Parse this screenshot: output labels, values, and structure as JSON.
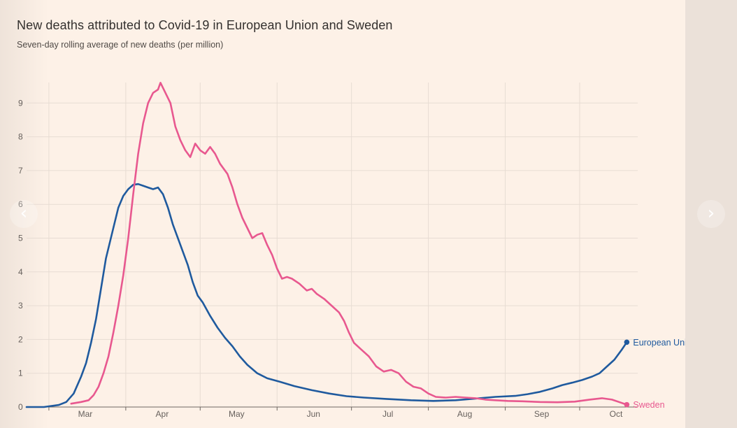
{
  "title": "New deaths attributed to Covid-19 in European Union and Sweden",
  "subtitle": "Seven-day rolling average of new deaths (per million)",
  "nav": {
    "prev_icon": "‹",
    "next_icon": "›"
  },
  "chart_data": {
    "type": "line",
    "title": "New deaths attributed to Covid-19 in European Union and Sweden",
    "subtitle": "Seven-day rolling average of new deaths (per million)",
    "xlabel": "",
    "ylabel": "",
    "x_ticks": [
      "Mar",
      "Apr",
      "May",
      "Jun",
      "Jul",
      "Aug",
      "Sep",
      "Oct"
    ],
    "y_ticks": [
      0,
      1,
      2,
      3,
      4,
      5,
      6,
      7,
      8,
      9
    ],
    "ylim": [
      0,
      9.7
    ],
    "xlim": [
      "2020-02-21",
      "2020-10-20"
    ],
    "grid": true,
    "legend": "end-of-line labels",
    "series": [
      {
        "name": "European Union",
        "color": "#1f5a9e",
        "points": [
          [
            "2020-02-21",
            0
          ],
          [
            "2020-02-28",
            0
          ],
          [
            "2020-03-01",
            0.02
          ],
          [
            "2020-03-05",
            0.06
          ],
          [
            "2020-03-08",
            0.15
          ],
          [
            "2020-03-11",
            0.4
          ],
          [
            "2020-03-14",
            0.9
          ],
          [
            "2020-03-16",
            1.3
          ],
          [
            "2020-03-18",
            1.9
          ],
          [
            "2020-03-20",
            2.6
          ],
          [
            "2020-03-22",
            3.5
          ],
          [
            "2020-03-24",
            4.4
          ],
          [
            "2020-03-27",
            5.3
          ],
          [
            "2020-03-29",
            5.9
          ],
          [
            "2020-03-31",
            6.25
          ],
          [
            "2020-04-02",
            6.45
          ],
          [
            "2020-04-04",
            6.58
          ],
          [
            "2020-04-06",
            6.6
          ],
          [
            "2020-04-08",
            6.55
          ],
          [
            "2020-04-10",
            6.5
          ],
          [
            "2020-04-12",
            6.45
          ],
          [
            "2020-04-14",
            6.5
          ],
          [
            "2020-04-16",
            6.3
          ],
          [
            "2020-04-18",
            5.9
          ],
          [
            "2020-04-20",
            5.4
          ],
          [
            "2020-04-22",
            5.0
          ],
          [
            "2020-04-24",
            4.6
          ],
          [
            "2020-04-26",
            4.2
          ],
          [
            "2020-04-28",
            3.7
          ],
          [
            "2020-04-30",
            3.3
          ],
          [
            "2020-05-02",
            3.1
          ],
          [
            "2020-05-05",
            2.7
          ],
          [
            "2020-05-08",
            2.35
          ],
          [
            "2020-05-11",
            2.05
          ],
          [
            "2020-05-14",
            1.8
          ],
          [
            "2020-05-17",
            1.5
          ],
          [
            "2020-05-20",
            1.25
          ],
          [
            "2020-05-24",
            1.0
          ],
          [
            "2020-05-28",
            0.85
          ],
          [
            "2020-06-02",
            0.75
          ],
          [
            "2020-06-08",
            0.62
          ],
          [
            "2020-06-15",
            0.5
          ],
          [
            "2020-06-22",
            0.4
          ],
          [
            "2020-06-29",
            0.32
          ],
          [
            "2020-07-06",
            0.28
          ],
          [
            "2020-07-15",
            0.24
          ],
          [
            "2020-07-25",
            0.2
          ],
          [
            "2020-08-03",
            0.18
          ],
          [
            "2020-08-12",
            0.2
          ],
          [
            "2020-08-20",
            0.25
          ],
          [
            "2020-08-28",
            0.3
          ],
          [
            "2020-09-05",
            0.33
          ],
          [
            "2020-09-10",
            0.38
          ],
          [
            "2020-09-15",
            0.45
          ],
          [
            "2020-09-20",
            0.55
          ],
          [
            "2020-09-24",
            0.65
          ],
          [
            "2020-09-28",
            0.72
          ],
          [
            "2020-10-02",
            0.8
          ],
          [
            "2020-10-06",
            0.9
          ],
          [
            "2020-10-09",
            1.0
          ],
          [
            "2020-10-12",
            1.2
          ],
          [
            "2020-10-15",
            1.4
          ],
          [
            "2020-10-18",
            1.7
          ],
          [
            "2020-10-20",
            1.92
          ]
        ]
      },
      {
        "name": "Sweden",
        "color": "#e8588f",
        "points": [
          [
            "2020-03-10",
            0.1
          ],
          [
            "2020-03-14",
            0.15
          ],
          [
            "2020-03-17",
            0.2
          ],
          [
            "2020-03-19",
            0.35
          ],
          [
            "2020-03-21",
            0.6
          ],
          [
            "2020-03-23",
            1.0
          ],
          [
            "2020-03-25",
            1.5
          ],
          [
            "2020-03-27",
            2.2
          ],
          [
            "2020-03-29",
            3.0
          ],
          [
            "2020-03-31",
            3.9
          ],
          [
            "2020-04-02",
            5.0
          ],
          [
            "2020-04-04",
            6.3
          ],
          [
            "2020-04-06",
            7.5
          ],
          [
            "2020-04-08",
            8.4
          ],
          [
            "2020-04-10",
            9.0
          ],
          [
            "2020-04-12",
            9.3
          ],
          [
            "2020-04-14",
            9.4
          ],
          [
            "2020-04-15",
            9.6
          ],
          [
            "2020-04-17",
            9.3
          ],
          [
            "2020-04-19",
            9.0
          ],
          [
            "2020-04-21",
            8.3
          ],
          [
            "2020-04-23",
            7.9
          ],
          [
            "2020-04-25",
            7.6
          ],
          [
            "2020-04-27",
            7.4
          ],
          [
            "2020-04-29",
            7.8
          ],
          [
            "2020-05-01",
            7.6
          ],
          [
            "2020-05-03",
            7.5
          ],
          [
            "2020-05-05",
            7.7
          ],
          [
            "2020-05-07",
            7.5
          ],
          [
            "2020-05-09",
            7.2
          ],
          [
            "2020-05-12",
            6.9
          ],
          [
            "2020-05-14",
            6.5
          ],
          [
            "2020-05-16",
            6.0
          ],
          [
            "2020-05-18",
            5.6
          ],
          [
            "2020-05-20",
            5.3
          ],
          [
            "2020-05-22",
            5.0
          ],
          [
            "2020-05-24",
            5.1
          ],
          [
            "2020-05-26",
            5.15
          ],
          [
            "2020-05-28",
            4.8
          ],
          [
            "2020-05-30",
            4.5
          ],
          [
            "2020-06-01",
            4.1
          ],
          [
            "2020-06-03",
            3.8
          ],
          [
            "2020-06-05",
            3.85
          ],
          [
            "2020-06-07",
            3.8
          ],
          [
            "2020-06-10",
            3.65
          ],
          [
            "2020-06-13",
            3.45
          ],
          [
            "2020-06-15",
            3.5
          ],
          [
            "2020-06-17",
            3.35
          ],
          [
            "2020-06-20",
            3.2
          ],
          [
            "2020-06-23",
            3.0
          ],
          [
            "2020-06-26",
            2.8
          ],
          [
            "2020-06-28",
            2.55
          ],
          [
            "2020-06-30",
            2.2
          ],
          [
            "2020-07-02",
            1.9
          ],
          [
            "2020-07-05",
            1.7
          ],
          [
            "2020-07-08",
            1.5
          ],
          [
            "2020-07-11",
            1.2
          ],
          [
            "2020-07-14",
            1.05
          ],
          [
            "2020-07-17",
            1.1
          ],
          [
            "2020-07-20",
            1.0
          ],
          [
            "2020-07-23",
            0.75
          ],
          [
            "2020-07-26",
            0.6
          ],
          [
            "2020-07-29",
            0.55
          ],
          [
            "2020-08-01",
            0.4
          ],
          [
            "2020-08-04",
            0.3
          ],
          [
            "2020-08-08",
            0.28
          ],
          [
            "2020-08-12",
            0.3
          ],
          [
            "2020-08-16",
            0.28
          ],
          [
            "2020-08-20",
            0.26
          ],
          [
            "2020-08-24",
            0.22
          ],
          [
            "2020-08-28",
            0.2
          ],
          [
            "2020-09-02",
            0.18
          ],
          [
            "2020-09-08",
            0.17
          ],
          [
            "2020-09-15",
            0.15
          ],
          [
            "2020-09-22",
            0.14
          ],
          [
            "2020-09-29",
            0.16
          ],
          [
            "2020-10-05",
            0.22
          ],
          [
            "2020-10-10",
            0.26
          ],
          [
            "2020-10-14",
            0.22
          ],
          [
            "2020-10-18",
            0.12
          ],
          [
            "2020-10-20",
            0.07
          ]
        ]
      }
    ]
  }
}
